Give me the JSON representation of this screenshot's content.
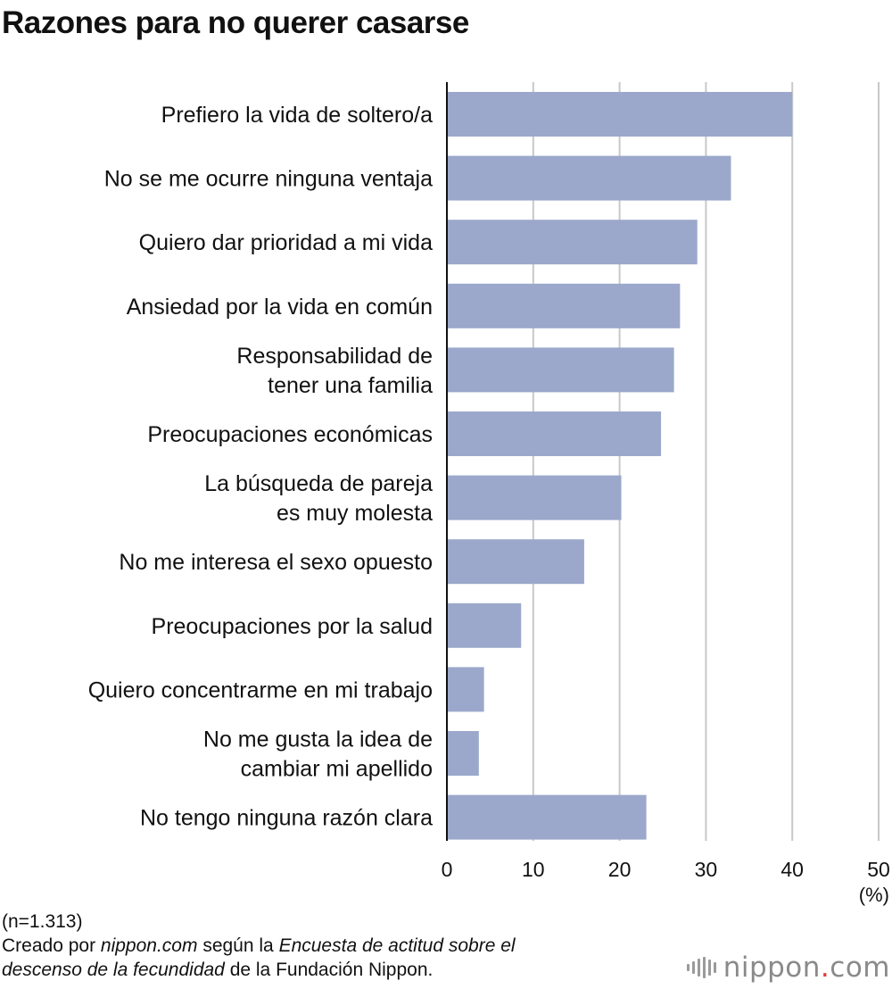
{
  "chart_data": {
    "type": "bar",
    "orientation": "horizontal",
    "title": "Razones para no querer casarse",
    "categories": [
      [
        "Prefiero la vida de soltero/a"
      ],
      [
        "No se me ocurre ninguna ventaja"
      ],
      [
        "Quiero dar prioridad a mi vida"
      ],
      [
        "Ansiedad por la vida en común"
      ],
      [
        "Responsabilidad de",
        "tener una familia"
      ],
      [
        "Preocupaciones económicas"
      ],
      [
        "La búsqueda de pareja",
        "es muy molesta"
      ],
      [
        "No me interesa el sexo opuesto"
      ],
      [
        "Preocupaciones por la salud"
      ],
      [
        "Quiero concentrarme en mi trabajo"
      ],
      [
        "No me gusta la idea de",
        "cambiar mi apellido"
      ],
      [
        "No tengo ninguna razón clara"
      ]
    ],
    "values": [
      40.0,
      32.9,
      29.0,
      27.0,
      26.3,
      24.8,
      20.2,
      15.9,
      8.6,
      4.3,
      3.7,
      23.1
    ],
    "xlim": [
      0,
      50
    ],
    "xticks": [
      0,
      10,
      20,
      30,
      40,
      50
    ],
    "xlabel": "(%)",
    "grid": true,
    "bar_color": "#9ba8cb",
    "grid_color": "#c8c8c8",
    "axis_color": "#111111"
  },
  "footer": {
    "sample": "(n=1.313)",
    "source_prefix": "Creado por ",
    "source_site": "nippon.com",
    "source_middle": " según la ",
    "source_survey_1": "Encuesta de actitud sobre el",
    "source_survey_2": "descenso de la fecundidad",
    "source_suffix": " de la Fundación Nippon."
  },
  "brand": {
    "name": "nippon",
    "dot": ".",
    "tld": "com",
    "accent": "#e83a2f"
  }
}
